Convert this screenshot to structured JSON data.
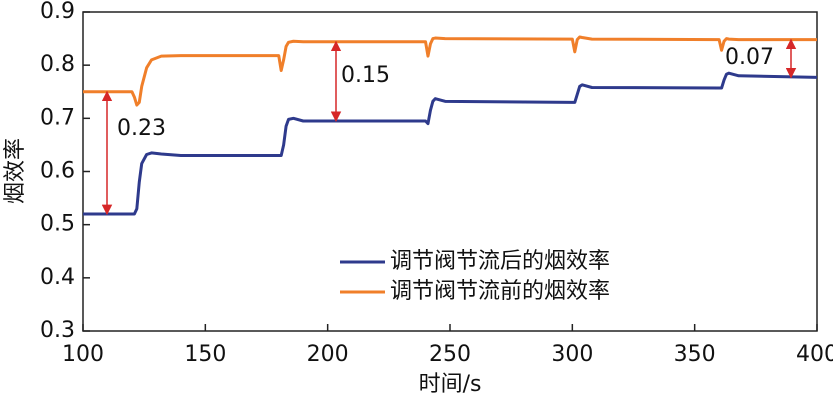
{
  "chart_data": {
    "type": "line",
    "xlabel": "时间/s",
    "ylabel": "烟效率",
    "x": [
      100,
      120,
      121,
      122,
      123,
      124,
      126,
      128,
      132,
      140,
      180,
      181,
      182,
      183,
      184,
      186,
      190,
      240,
      241,
      242,
      243,
      244,
      248,
      300,
      301,
      302,
      303,
      304,
      308,
      360,
      361,
      362,
      363,
      364,
      368,
      400
    ],
    "series": [
      {
        "name": "调节阀节流后的烟效率",
        "color": "#2e3a8c",
        "values": [
          0.52,
          0.52,
          0.52,
          0.53,
          0.58,
          0.615,
          0.632,
          0.635,
          0.633,
          0.63,
          0.63,
          0.63,
          0.65,
          0.685,
          0.698,
          0.7,
          0.695,
          0.695,
          0.69,
          0.715,
          0.732,
          0.737,
          0.732,
          0.73,
          0.73,
          0.745,
          0.76,
          0.763,
          0.758,
          0.757,
          0.757,
          0.772,
          0.783,
          0.785,
          0.78,
          0.777
        ]
      },
      {
        "name": "调节阀节流前的烟效率",
        "color": "#f07f2a",
        "values": [
          0.75,
          0.75,
          0.74,
          0.725,
          0.73,
          0.76,
          0.795,
          0.81,
          0.817,
          0.818,
          0.818,
          0.79,
          0.81,
          0.835,
          0.843,
          0.845,
          0.844,
          0.844,
          0.817,
          0.84,
          0.85,
          0.851,
          0.85,
          0.849,
          0.825,
          0.848,
          0.853,
          0.852,
          0.849,
          0.848,
          0.828,
          0.845,
          0.85,
          0.849,
          0.848,
          0.848
        ]
      }
    ],
    "annotations": [
      "0.23",
      "0.15",
      "0.07"
    ],
    "annotation_color": "#d62728",
    "xlim": [
      100,
      400
    ],
    "xticks": [
      100,
      150,
      200,
      250,
      300,
      350,
      400
    ],
    "ylim": [
      0.3,
      0.9
    ],
    "yticks": [
      0.3,
      0.4,
      0.5,
      0.6,
      0.7,
      0.8,
      0.9
    ],
    "legend": "lower right"
  }
}
